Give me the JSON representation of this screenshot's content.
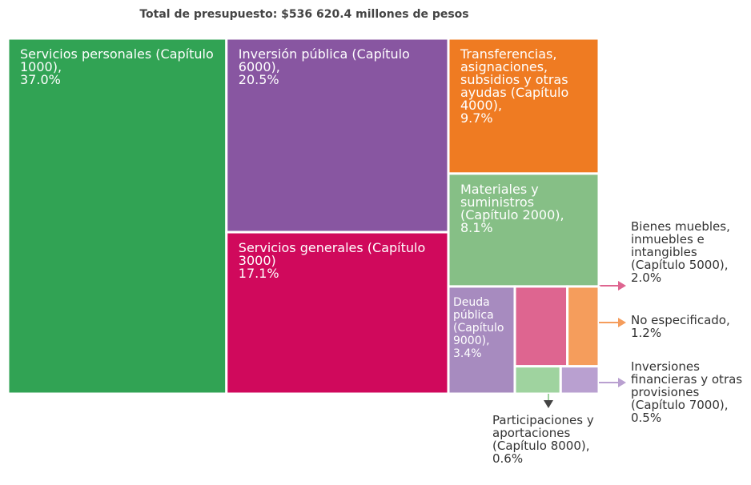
{
  "chart_data": {
    "type": "treemap",
    "title": "Total de presupuesto: $536 620.4 millones de pesos",
    "categories": [
      "Servicios personales (Capítulo 1000),",
      "Inversión pública (Capítulo 6000),",
      "Servicios generales (Capítulo 3000)",
      "Transferencias, asignaciones, subsidios y otras ayudas (Capítulo 4000),",
      "Materiales y suministros (Capítulo 2000),",
      "Deuda pública (Capítulo 9000),",
      "Bienes muebles, inmuebles e intangibles (Capítulo 5000),",
      "No especificado,",
      "Participaciones y aportaciones (Capítulo 8000),",
      "Inversiones financieras y otras provisiones (Capítulo 7000),"
    ],
    "values": [
      37.0,
      20.5,
      17.1,
      9.7,
      8.1,
      3.4,
      2.0,
      1.2,
      0.6,
      0.5
    ],
    "value_labels": [
      "37.0%",
      "20.5%",
      "17.1%",
      "9.7%",
      "8.1%",
      "3.4%",
      "2.0%",
      "1.2%",
      "0.6%",
      "0.5%"
    ],
    "colors": [
      "#31a354",
      "#8856a1",
      "#d0095c",
      "#ef7b22",
      "#86bf86",
      "#a78bbf",
      "#de6590",
      "#f59d5c",
      "#9fd39f",
      "#b9a0d0"
    ]
  }
}
